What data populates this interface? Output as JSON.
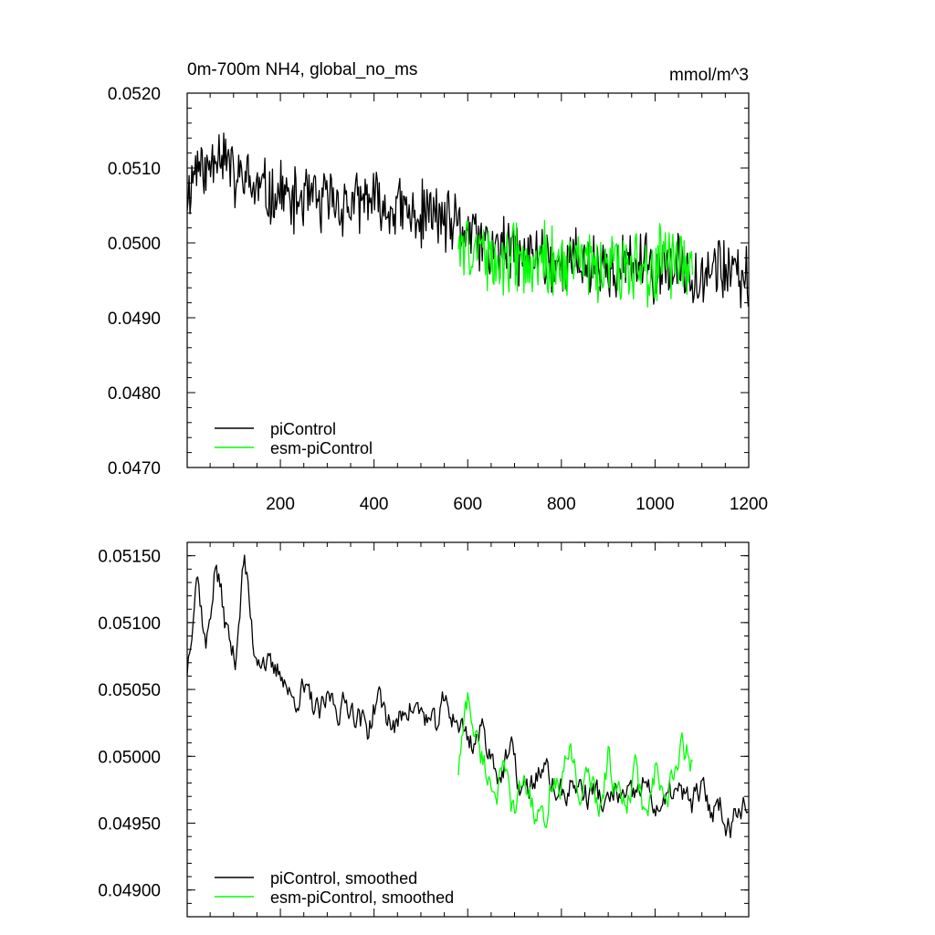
{
  "chart_data": [
    {
      "type": "line",
      "title": "0m-700m NH4, global_no_ms",
      "units": "mmol/m^3",
      "xlim": [
        1,
        1200
      ],
      "ylim": [
        0.047,
        0.052
      ],
      "x_ticks": [
        200,
        400,
        600,
        800,
        1000,
        1200
      ],
      "y_ticks": [
        "0.0470",
        "0.0480",
        "0.0490",
        "0.0500",
        "0.0510",
        "0.0520"
      ],
      "legend_position": "bottom-left",
      "series": [
        {
          "name": "piControl",
          "color": "#000000",
          "x_range": [
            1,
            1200
          ],
          "values": [
            0.0506,
            0.0511,
            0.0509,
            0.0513,
            0.0512,
            0.0508,
            0.0509,
            0.0507,
            0.0507,
            0.0506,
            0.0507,
            0.0505,
            0.0506,
            0.0506,
            0.0505,
            0.0506,
            0.0505,
            0.0505,
            0.0505,
            0.0506,
            0.0505,
            0.0504,
            0.0505,
            0.0504,
            0.0503,
            0.0504,
            0.0504,
            0.0503,
            0.0502,
            0.0502,
            0.0501,
            0.05,
            0.0499,
            0.0499,
            0.0499,
            0.0498,
            0.0498,
            0.0499,
            0.0498,
            0.0497,
            0.0497,
            0.0498,
            0.0497,
            0.0497,
            0.0497,
            0.0496,
            0.0497,
            0.0497,
            0.0497,
            0.0496,
            0.0497,
            0.0496,
            0.0497,
            0.0496,
            0.0496,
            0.0497,
            0.0497,
            0.0496,
            0.0495,
            0.0495
          ]
        },
        {
          "name": "esm-piControl",
          "color": "#00ff00",
          "x_range": [
            580,
            1080
          ],
          "values": [
            0.0501,
            0.0499,
            0.05,
            0.0498,
            0.0497,
            0.0498,
            0.0499,
            0.0496,
            0.0497,
            0.0498,
            0.0497,
            0.0496,
            0.0498,
            0.0497,
            0.0497,
            0.0496,
            0.0498,
            0.0497,
            0.0496,
            0.0497,
            0.0496,
            0.0497,
            0.0498,
            0.0496,
            0.0497,
            0.0496
          ]
        }
      ]
    },
    {
      "type": "line",
      "xlim": [
        1,
        1200
      ],
      "ylim": [
        0.0488,
        0.0516
      ],
      "y_ticks": [
        "0.04900",
        "0.04950",
        "0.05000",
        "0.05050",
        "0.05100",
        "0.05150"
      ],
      "legend_position": "bottom-left",
      "series": [
        {
          "name": "piControl, smoothed",
          "color": "#000000",
          "x_range": [
            1,
            1200
          ],
          "values": [
            0.05065,
            0.0514,
            0.0508,
            0.05145,
            0.051,
            0.0507,
            0.0515,
            0.0508,
            0.05075,
            0.0506,
            0.05065,
            0.0504,
            0.0505,
            0.0504,
            0.0503,
            0.05045,
            0.05035,
            0.0504,
            0.0503,
            0.0502,
            0.05045,
            0.0503,
            0.0502,
            0.0504,
            0.05035,
            0.0503,
            0.0502,
            0.0504,
            0.0503,
            0.0502,
            0.0501,
            0.0502,
            0.05,
            0.04985,
            0.05005,
            0.04975,
            0.04975,
            0.0499,
            0.04985,
            0.0497,
            0.04975,
            0.0498,
            0.0497,
            0.04975,
            0.0496,
            0.04975,
            0.04965,
            0.0497,
            0.0498,
            0.04965,
            0.0496,
            0.04975,
            0.0497,
            0.04965,
            0.04975,
            0.0496,
            0.04965,
            0.04945,
            0.0497,
            0.0496
          ]
        },
        {
          "name": "esm-piControl, smoothed",
          "color": "#00ff00",
          "x_range": [
            580,
            1080
          ],
          "values": [
            0.0499,
            0.05045,
            0.0501,
            0.0499,
            0.04975,
            0.04985,
            0.04955,
            0.04985,
            0.0496,
            0.04945,
            0.04985,
            0.04975,
            0.0501,
            0.0497,
            0.04985,
            0.0496,
            0.05,
            0.0497,
            0.0496,
            0.0499,
            0.0495,
            0.04985,
            0.04965,
            0.0498,
            0.0501,
            0.0499
          ]
        }
      ]
    }
  ]
}
